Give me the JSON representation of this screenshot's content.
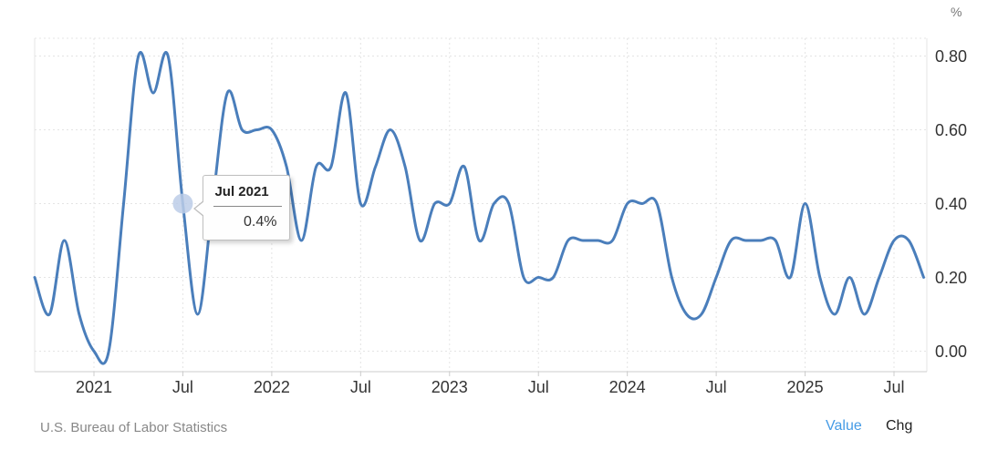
{
  "chart_data": {
    "type": "line",
    "subtype": "spline",
    "x_range": [
      "Sep 2020",
      "Sep 2025"
    ],
    "x": [
      "Sep 2020",
      "Oct 2020",
      "Nov 2020",
      "Dec 2020",
      "Jan 2021",
      "Feb 2021",
      "Mar 2021",
      "Apr 2021",
      "May 2021",
      "Jun 2021",
      "Jul 2021",
      "Aug 2021",
      "Sep 2021",
      "Oct 2021",
      "Nov 2021",
      "Dec 2021",
      "Jan 2022",
      "Feb 2022",
      "Mar 2022",
      "Apr 2022",
      "May 2022",
      "Jun 2022",
      "Jul 2022",
      "Aug 2022",
      "Sep 2022",
      "Oct 2022",
      "Nov 2022",
      "Dec 2022",
      "Jan 2023",
      "Feb 2023",
      "Mar 2023",
      "Apr 2023",
      "May 2023",
      "Jun 2023",
      "Jul 2023",
      "Aug 2023",
      "Sep 2023",
      "Oct 2023",
      "Nov 2023",
      "Dec 2023",
      "Jan 2024",
      "Feb 2024",
      "Mar 2024",
      "Apr 2024",
      "May 2024",
      "Jun 2024",
      "Jul 2024",
      "Aug 2024",
      "Sep 2024",
      "Oct 2024",
      "Nov 2024",
      "Dec 2024",
      "Jan 2025",
      "Feb 2025",
      "Mar 2025",
      "Apr 2025",
      "May 2025",
      "Jun 2025",
      "Jul 2025",
      "Aug 2025",
      "Sep 2025"
    ],
    "values": [
      0.2,
      0.1,
      0.3,
      0.1,
      0.0,
      0.0,
      0.4,
      0.8,
      0.7,
      0.8,
      0.4,
      0.1,
      0.4,
      0.7,
      0.6,
      0.6,
      0.6,
      0.5,
      0.3,
      0.5,
      0.5,
      0.7,
      0.4,
      0.5,
      0.6,
      0.5,
      0.3,
      0.4,
      0.4,
      0.5,
      0.3,
      0.4,
      0.4,
      0.2,
      0.2,
      0.2,
      0.3,
      0.3,
      0.3,
      0.3,
      0.4,
      0.4,
      0.4,
      0.2,
      0.1,
      0.1,
      0.2,
      0.3,
      0.3,
      0.3,
      0.3,
      0.2,
      0.4,
      0.2,
      0.1,
      0.2,
      0.1,
      0.2,
      0.3,
      0.3,
      0.2
    ],
    "y_axis_unit": "%",
    "ylim": [
      0.0,
      0.8
    ],
    "grid": "dotted",
    "legend": "none",
    "x_ticks": [
      {
        "label": "2021",
        "index": 4
      },
      {
        "label": "Jul",
        "index": 10
      },
      {
        "label": "2022",
        "index": 16
      },
      {
        "label": "Jul",
        "index": 22
      },
      {
        "label": "2023",
        "index": 28
      },
      {
        "label": "Jul",
        "index": 34
      },
      {
        "label": "2024",
        "index": 40
      },
      {
        "label": "Jul",
        "index": 46
      },
      {
        "label": "2025",
        "index": 52
      },
      {
        "label": "Jul",
        "index": 58
      }
    ],
    "y_ticks": [
      {
        "label": "0.80",
        "value": 0.8
      },
      {
        "label": "0.60",
        "value": 0.6
      },
      {
        "label": "0.40",
        "value": 0.4
      },
      {
        "label": "0.20",
        "value": 0.2
      },
      {
        "label": "0.00",
        "value": 0.0
      }
    ]
  },
  "tooltip": {
    "title": "Jul 2021",
    "value": "0.4%",
    "point_index": 10
  },
  "footer": {
    "source": "U.S. Bureau of Labor Statistics",
    "links": [
      {
        "label": "Value",
        "active": true
      },
      {
        "label": "Chg",
        "active": false
      }
    ]
  },
  "colors": {
    "line": "#4a7ebb",
    "marker": "#bccde7",
    "grid": "#e4e4e4",
    "axis": "#cccccc",
    "tick_label": "#333333",
    "unit_label": "#777777",
    "source_text": "#888888",
    "link_active": "#459be5",
    "link_inactive": "#222222"
  }
}
